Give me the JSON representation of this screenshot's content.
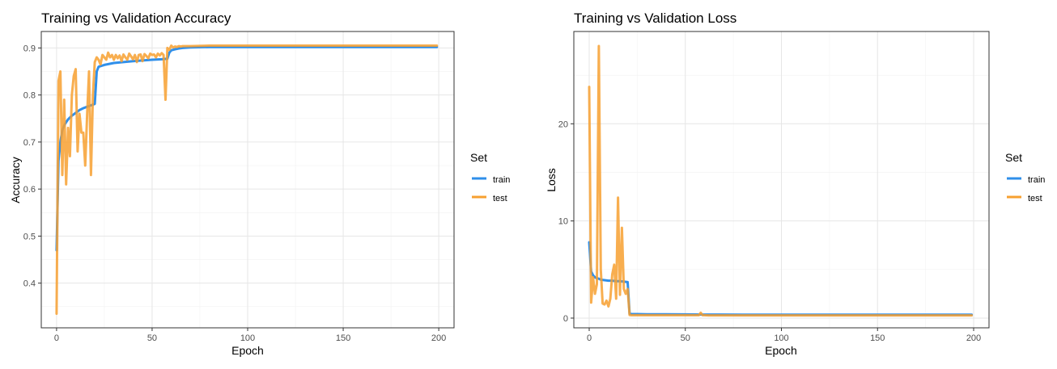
{
  "colors": {
    "train": "#2F8FEA",
    "test": "#F7A030",
    "grid_major": "#E6E6E6",
    "grid_minor": "#F2F2F2",
    "panel_border": "#333333",
    "tick_text": "#4D4D4D"
  },
  "chart_data": [
    {
      "type": "line",
      "title": "Training vs Validation Accuracy",
      "xlabel": "Epoch",
      "ylabel": "Accuracy",
      "xlim": [
        -8,
        208
      ],
      "ylim": [
        0.305,
        0.935
      ],
      "xticks": [
        0,
        50,
        100,
        150,
        200
      ],
      "yticks": [
        0.4,
        0.5,
        0.6,
        0.7,
        0.8,
        0.9
      ],
      "ytick_labels": [
        "0.4",
        "0.5",
        "0.6",
        "0.7",
        "0.8",
        "0.9"
      ],
      "grid": true,
      "legend": {
        "title": "Set",
        "placement": "right"
      },
      "series": [
        {
          "name": "train",
          "x": [
            0,
            1,
            2,
            3,
            4,
            5,
            6,
            7,
            8,
            10,
            12,
            14,
            16,
            18,
            20,
            21,
            22,
            25,
            30,
            40,
            50,
            55,
            58,
            59,
            60,
            62,
            64,
            66,
            70,
            80,
            100,
            150,
            199
          ],
          "y": [
            0.47,
            0.66,
            0.7,
            0.725,
            0.735,
            0.742,
            0.748,
            0.752,
            0.756,
            0.762,
            0.768,
            0.772,
            0.775,
            0.778,
            0.781,
            0.85,
            0.86,
            0.864,
            0.868,
            0.872,
            0.875,
            0.876,
            0.877,
            0.89,
            0.895,
            0.897,
            0.899,
            0.9,
            0.901,
            0.902,
            0.902,
            0.902,
            0.902
          ]
        },
        {
          "name": "test",
          "x": [
            0,
            1,
            2,
            3,
            4,
            5,
            6,
            7,
            8,
            9,
            10,
            11,
            12,
            13,
            14,
            15,
            16,
            17,
            18,
            19,
            20,
            21,
            22,
            23,
            24,
            25,
            26,
            27,
            28,
            29,
            30,
            31,
            32,
            33,
            34,
            35,
            36,
            37,
            38,
            39,
            40,
            41,
            42,
            43,
            44,
            45,
            46,
            47,
            48,
            49,
            50,
            51,
            52,
            53,
            54,
            55,
            56,
            57,
            58,
            59,
            60,
            61,
            62,
            63,
            64,
            65,
            66,
            70,
            80,
            100,
            150,
            199
          ],
          "y": [
            0.335,
            0.83,
            0.85,
            0.63,
            0.79,
            0.61,
            0.73,
            0.67,
            0.8,
            0.84,
            0.855,
            0.68,
            0.76,
            0.72,
            0.72,
            0.65,
            0.76,
            0.85,
            0.63,
            0.8,
            0.87,
            0.88,
            0.875,
            0.865,
            0.885,
            0.88,
            0.875,
            0.89,
            0.88,
            0.885,
            0.875,
            0.885,
            0.878,
            0.884,
            0.872,
            0.886,
            0.88,
            0.875,
            0.888,
            0.882,
            0.876,
            0.885,
            0.87,
            0.885,
            0.886,
            0.872,
            0.887,
            0.883,
            0.878,
            0.888,
            0.885,
            0.886,
            0.88,
            0.888,
            0.884,
            0.889,
            0.885,
            0.79,
            0.9,
            0.896,
            0.905,
            0.901,
            0.903,
            0.902,
            0.904,
            0.903,
            0.904,
            0.904,
            0.905,
            0.905,
            0.905,
            0.905
          ]
        }
      ]
    },
    {
      "type": "line",
      "title": "Training vs Validation Loss",
      "xlabel": "Epoch",
      "ylabel": "Loss",
      "xlim": [
        -8,
        208
      ],
      "ylim": [
        -1.0,
        29.5
      ],
      "xticks": [
        0,
        50,
        100,
        150,
        200
      ],
      "yticks": [
        0,
        10,
        20
      ],
      "ytick_labels": [
        "0",
        "10",
        "20"
      ],
      "grid": true,
      "legend": {
        "title": "Set",
        "placement": "right"
      },
      "series": [
        {
          "name": "train",
          "x": [
            0,
            1,
            2,
            3,
            4,
            5,
            6,
            8,
            10,
            12,
            14,
            16,
            18,
            20,
            21,
            22,
            25,
            30,
            40,
            50,
            60,
            80,
            100,
            150,
            199
          ],
          "y": [
            7.8,
            4.8,
            4.4,
            4.2,
            4.1,
            4.05,
            3.95,
            3.9,
            3.85,
            3.85,
            3.8,
            3.8,
            3.75,
            3.7,
            0.45,
            0.42,
            0.41,
            0.4,
            0.39,
            0.38,
            0.36,
            0.35,
            0.35,
            0.35,
            0.35
          ]
        },
        {
          "name": "test",
          "x": [
            0,
            1,
            2,
            3,
            4,
            5,
            6,
            7,
            8,
            9,
            10,
            11,
            12,
            13,
            14,
            15,
            16,
            17,
            18,
            19,
            20,
            21,
            22,
            25,
            30,
            40,
            50,
            55,
            57,
            58,
            59,
            60,
            62,
            66,
            70,
            80,
            100,
            150,
            199
          ],
          "y": [
            23.8,
            1.6,
            4.2,
            2.5,
            3.5,
            28.0,
            5.0,
            1.5,
            1.4,
            1.8,
            1.2,
            2.0,
            4.5,
            5.5,
            2.0,
            12.4,
            2.4,
            9.3,
            3.0,
            2.5,
            3.0,
            0.32,
            0.3,
            0.3,
            0.3,
            0.3,
            0.3,
            0.3,
            0.3,
            0.55,
            0.3,
            0.3,
            0.28,
            0.28,
            0.28,
            0.28,
            0.28,
            0.28,
            0.28
          ]
        }
      ]
    }
  ]
}
